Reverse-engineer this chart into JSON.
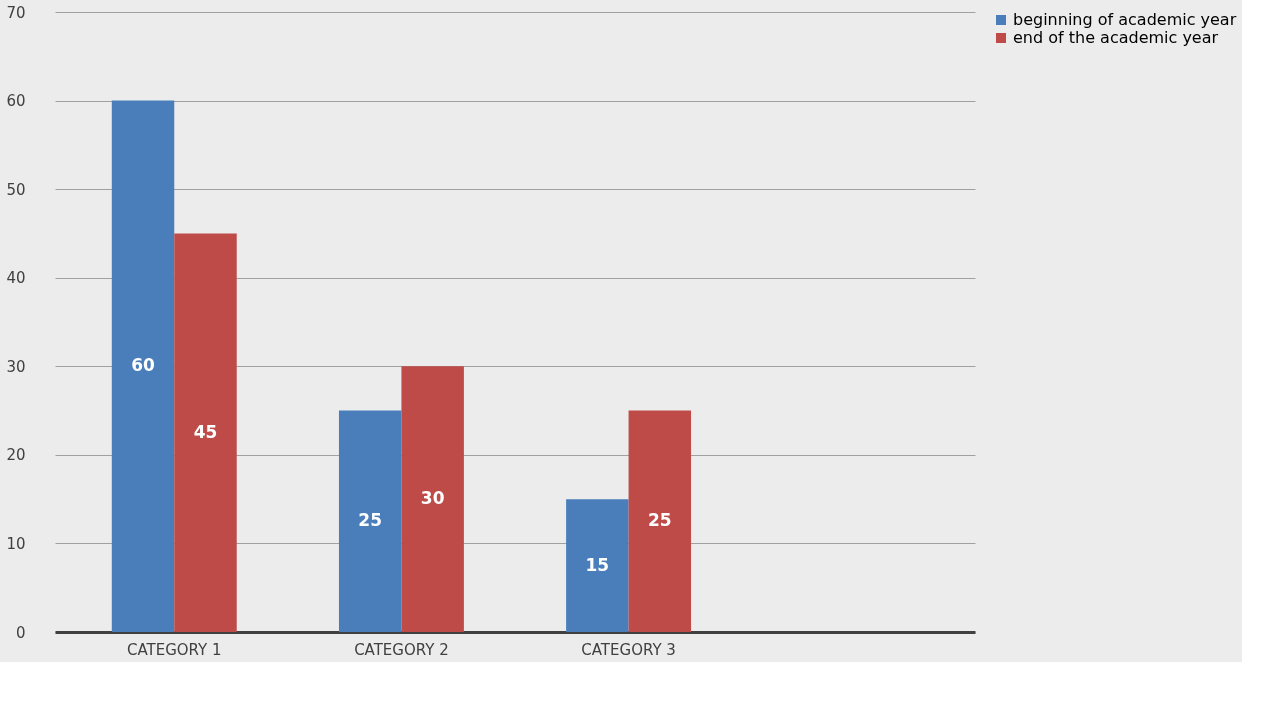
{
  "chart_data": {
    "type": "bar",
    "categories": [
      "CATEGORY 1",
      "CATEGORY 2",
      "CATEGORY 3",
      null
    ],
    "series": [
      {
        "name": "beginning of academic year",
        "color": "#4a7ebb",
        "values": [
          60,
          25,
          15,
          null
        ]
      },
      {
        "name": "end of the academic year",
        "color": "#be4b48",
        "values": [
          45,
          30,
          25,
          null
        ]
      }
    ],
    "ylim": [
      0,
      70
    ],
    "yticks": [
      0,
      10,
      20,
      30,
      40,
      50,
      60,
      70
    ],
    "grid": "y",
    "legend": "right",
    "data_labels": true
  }
}
